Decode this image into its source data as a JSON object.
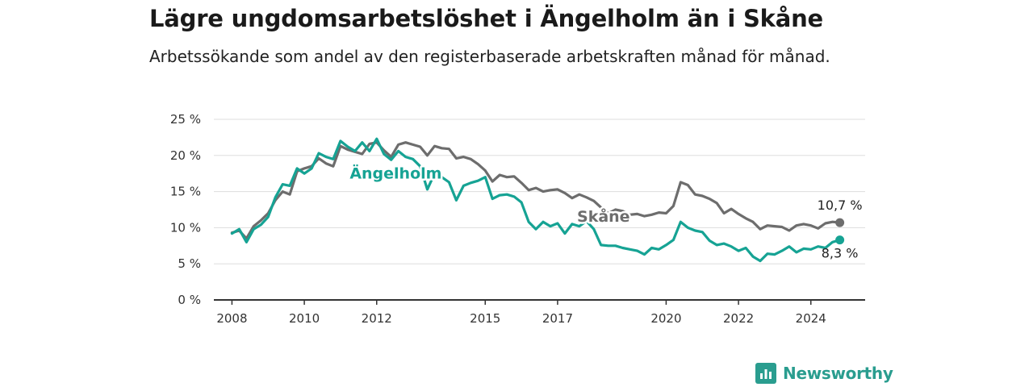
{
  "title": "Lägre ungdomsarbetslöshet i Ängelholm än i Skåne",
  "subtitle": "Arbetssökande som andel av den registerbaserade arbetskraften månad för månad.",
  "brand": "Newsworthy",
  "colors": {
    "angelholm": "#16a394",
    "skane": "#6d6d6d",
    "grid": "#dddddd",
    "axis": "#333333"
  },
  "chart_data": {
    "type": "line",
    "title": "Lägre ungdomsarbetslöshet i Ängelholm än i Skåne",
    "ylim": [
      0,
      25
    ],
    "xlim": [
      2007.5,
      2025.5
    ],
    "y_ticks": [
      "0 %",
      "5 %",
      "10 %",
      "15 %",
      "20 %",
      "25 %"
    ],
    "y_tick_values": [
      0,
      5,
      10,
      15,
      20,
      25
    ],
    "x_ticks": [
      "2008",
      "2010",
      "2012",
      "2015",
      "2017",
      "2020",
      "2022",
      "2024"
    ],
    "x_tick_values": [
      2008,
      2010,
      2012,
      2015,
      2017,
      2020,
      2022,
      2024
    ],
    "grid": true,
    "series": [
      {
        "name": "Skåne",
        "label": "Skåne",
        "end_label": "10,7 %",
        "color": "#6d6d6d",
        "points": [
          [
            2008.0,
            9.3
          ],
          [
            2008.2,
            9.6
          ],
          [
            2008.4,
            8.5
          ],
          [
            2008.6,
            10.2
          ],
          [
            2008.8,
            11.0
          ],
          [
            2009.0,
            12.0
          ],
          [
            2009.2,
            13.8
          ],
          [
            2009.4,
            15.0
          ],
          [
            2009.6,
            14.6
          ],
          [
            2009.8,
            17.8
          ],
          [
            2010.0,
            18.2
          ],
          [
            2010.2,
            18.5
          ],
          [
            2010.4,
            19.6
          ],
          [
            2010.6,
            18.9
          ],
          [
            2010.8,
            18.5
          ],
          [
            2011.0,
            21.3
          ],
          [
            2011.2,
            20.8
          ],
          [
            2011.4,
            20.5
          ],
          [
            2011.6,
            20.2
          ],
          [
            2011.8,
            21.6
          ],
          [
            2012.0,
            21.8
          ],
          [
            2012.2,
            20.7
          ],
          [
            2012.4,
            19.8
          ],
          [
            2012.6,
            21.5
          ],
          [
            2012.8,
            21.8
          ],
          [
            2013.0,
            21.5
          ],
          [
            2013.2,
            21.2
          ],
          [
            2013.4,
            20.0
          ],
          [
            2013.6,
            21.3
          ],
          [
            2013.8,
            21.0
          ],
          [
            2014.0,
            20.9
          ],
          [
            2014.2,
            19.6
          ],
          [
            2014.4,
            19.8
          ],
          [
            2014.6,
            19.5
          ],
          [
            2014.8,
            18.8
          ],
          [
            2015.0,
            17.9
          ],
          [
            2015.2,
            16.4
          ],
          [
            2015.4,
            17.3
          ],
          [
            2015.6,
            17.0
          ],
          [
            2015.8,
            17.1
          ],
          [
            2016.0,
            16.2
          ],
          [
            2016.2,
            15.2
          ],
          [
            2016.4,
            15.5
          ],
          [
            2016.6,
            15.0
          ],
          [
            2016.8,
            15.2
          ],
          [
            2017.0,
            15.3
          ],
          [
            2017.2,
            14.8
          ],
          [
            2017.4,
            14.1
          ],
          [
            2017.6,
            14.6
          ],
          [
            2017.8,
            14.2
          ],
          [
            2018.0,
            13.7
          ],
          [
            2018.2,
            12.8
          ],
          [
            2018.4,
            12.0
          ],
          [
            2018.6,
            12.5
          ],
          [
            2018.8,
            12.3
          ],
          [
            2019.0,
            11.8
          ],
          [
            2019.2,
            11.9
          ],
          [
            2019.4,
            11.6
          ],
          [
            2019.6,
            11.8
          ],
          [
            2019.8,
            12.1
          ],
          [
            2020.0,
            12.0
          ],
          [
            2020.2,
            13.0
          ],
          [
            2020.4,
            16.3
          ],
          [
            2020.6,
            15.9
          ],
          [
            2020.8,
            14.6
          ],
          [
            2021.0,
            14.4
          ],
          [
            2021.2,
            14.0
          ],
          [
            2021.4,
            13.4
          ],
          [
            2021.6,
            12.0
          ],
          [
            2021.8,
            12.6
          ],
          [
            2022.0,
            11.9
          ],
          [
            2022.2,
            11.3
          ],
          [
            2022.4,
            10.8
          ],
          [
            2022.6,
            9.8
          ],
          [
            2022.8,
            10.3
          ],
          [
            2023.0,
            10.2
          ],
          [
            2023.2,
            10.1
          ],
          [
            2023.4,
            9.6
          ],
          [
            2023.6,
            10.3
          ],
          [
            2023.8,
            10.5
          ],
          [
            2024.0,
            10.3
          ],
          [
            2024.2,
            9.9
          ],
          [
            2024.4,
            10.6
          ],
          [
            2024.6,
            10.8
          ],
          [
            2024.8,
            10.7
          ]
        ]
      },
      {
        "name": "Ängelholm",
        "label": "Ängelholm",
        "end_label": "8,3 %",
        "color": "#16a394",
        "points": [
          [
            2008.0,
            9.2
          ],
          [
            2008.2,
            9.8
          ],
          [
            2008.4,
            8.0
          ],
          [
            2008.6,
            9.8
          ],
          [
            2008.8,
            10.4
          ],
          [
            2009.0,
            11.5
          ],
          [
            2009.2,
            14.2
          ],
          [
            2009.4,
            16.0
          ],
          [
            2009.6,
            15.8
          ],
          [
            2009.8,
            18.2
          ],
          [
            2010.0,
            17.5
          ],
          [
            2010.2,
            18.2
          ],
          [
            2010.4,
            20.3
          ],
          [
            2010.6,
            19.8
          ],
          [
            2010.8,
            19.5
          ],
          [
            2011.0,
            22.0
          ],
          [
            2011.2,
            21.2
          ],
          [
            2011.4,
            20.6
          ],
          [
            2011.6,
            21.8
          ],
          [
            2011.8,
            20.6
          ],
          [
            2012.0,
            22.3
          ],
          [
            2012.2,
            20.2
          ],
          [
            2012.4,
            19.4
          ],
          [
            2012.6,
            20.6
          ],
          [
            2012.8,
            19.8
          ],
          [
            2013.0,
            19.5
          ],
          [
            2013.2,
            18.5
          ],
          [
            2013.4,
            15.3
          ],
          [
            2013.6,
            17.5
          ],
          [
            2013.8,
            17.0
          ],
          [
            2014.0,
            16.3
          ],
          [
            2014.2,
            13.8
          ],
          [
            2014.4,
            15.8
          ],
          [
            2014.6,
            16.2
          ],
          [
            2014.8,
            16.5
          ],
          [
            2015.0,
            17.0
          ],
          [
            2015.2,
            14.0
          ],
          [
            2015.4,
            14.5
          ],
          [
            2015.6,
            14.6
          ],
          [
            2015.8,
            14.3
          ],
          [
            2016.0,
            13.5
          ],
          [
            2016.2,
            10.8
          ],
          [
            2016.4,
            9.8
          ],
          [
            2016.6,
            10.8
          ],
          [
            2016.8,
            10.2
          ],
          [
            2017.0,
            10.6
          ],
          [
            2017.2,
            9.2
          ],
          [
            2017.4,
            10.5
          ],
          [
            2017.6,
            10.2
          ],
          [
            2017.8,
            10.9
          ],
          [
            2018.0,
            9.8
          ],
          [
            2018.2,
            7.6
          ],
          [
            2018.4,
            7.5
          ],
          [
            2018.6,
            7.5
          ],
          [
            2018.8,
            7.2
          ],
          [
            2019.0,
            7.0
          ],
          [
            2019.2,
            6.8
          ],
          [
            2019.4,
            6.3
          ],
          [
            2019.6,
            7.2
          ],
          [
            2019.8,
            7.0
          ],
          [
            2020.0,
            7.6
          ],
          [
            2020.2,
            8.3
          ],
          [
            2020.4,
            10.8
          ],
          [
            2020.6,
            10.0
          ],
          [
            2020.8,
            9.6
          ],
          [
            2021.0,
            9.4
          ],
          [
            2021.2,
            8.2
          ],
          [
            2021.4,
            7.6
          ],
          [
            2021.6,
            7.8
          ],
          [
            2021.8,
            7.4
          ],
          [
            2022.0,
            6.8
          ],
          [
            2022.2,
            7.2
          ],
          [
            2022.4,
            6.0
          ],
          [
            2022.6,
            5.4
          ],
          [
            2022.8,
            6.4
          ],
          [
            2023.0,
            6.3
          ],
          [
            2023.2,
            6.8
          ],
          [
            2023.4,
            7.4
          ],
          [
            2023.6,
            6.6
          ],
          [
            2023.8,
            7.1
          ],
          [
            2024.0,
            7.0
          ],
          [
            2024.2,
            7.4
          ],
          [
            2024.4,
            7.2
          ],
          [
            2024.6,
            8.0
          ],
          [
            2024.8,
            8.3
          ]
        ]
      }
    ]
  }
}
